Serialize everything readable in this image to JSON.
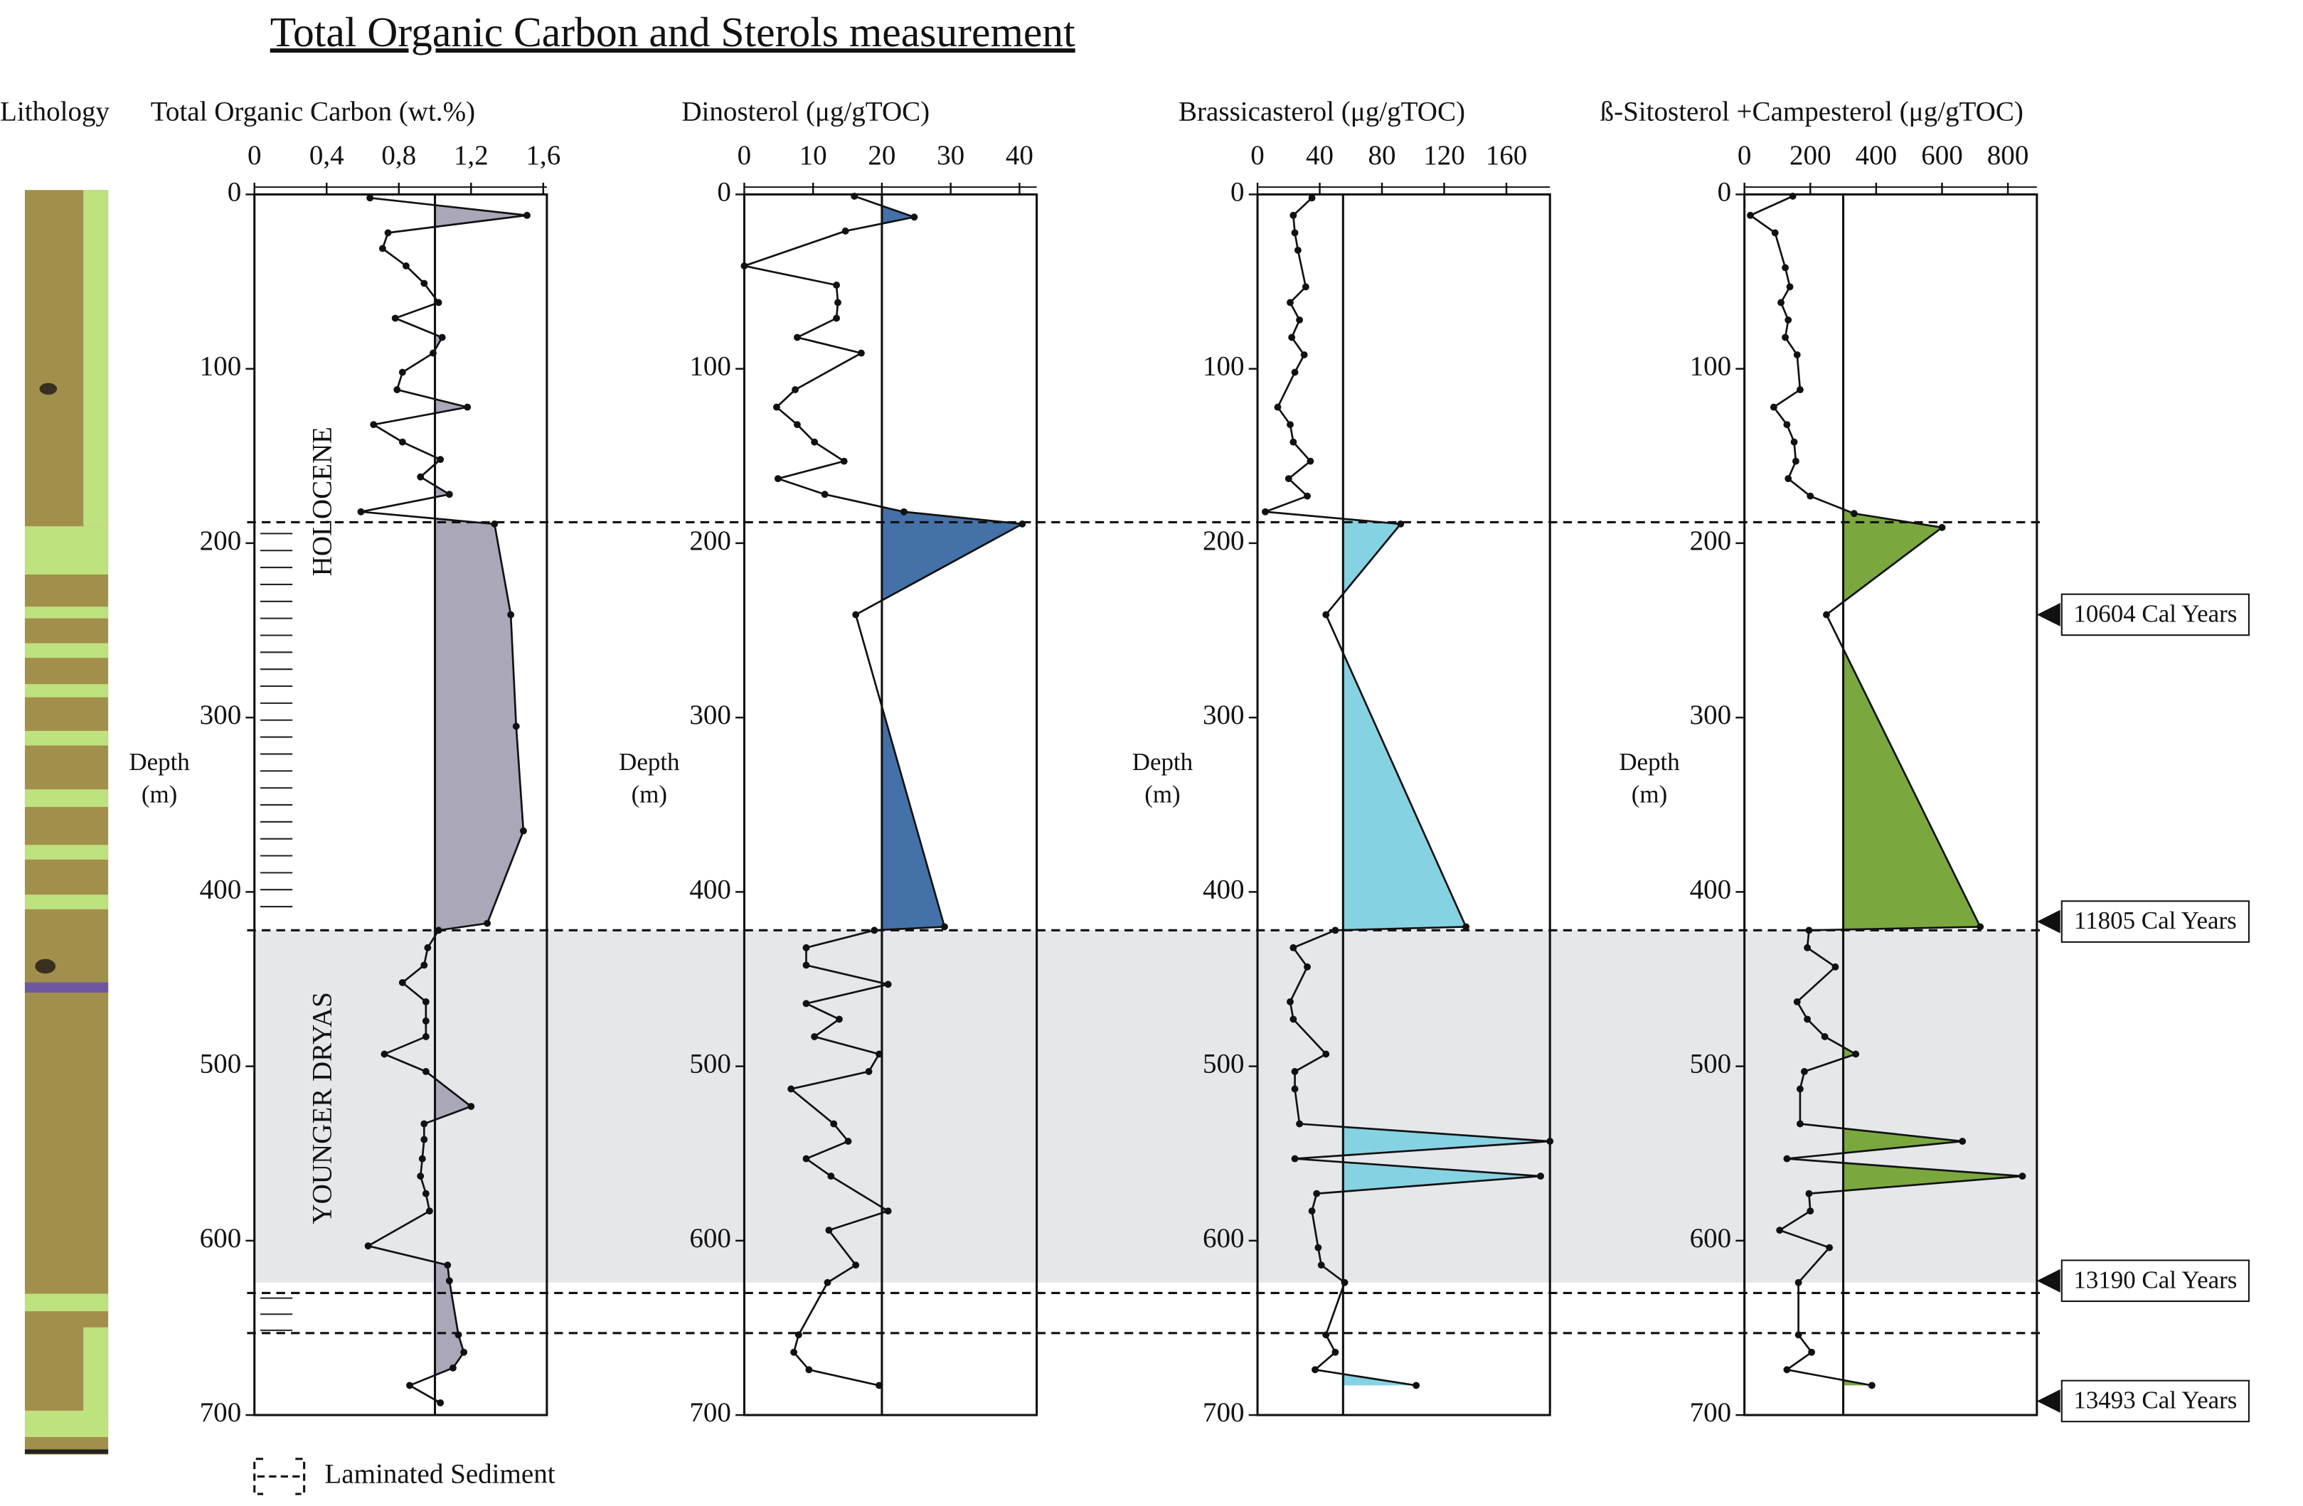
{
  "title": "Total Organic Carbon and Sterols measurement",
  "lithology_label": "Lithology",
  "legend_label": "Laminated Sediment",
  "zones": [
    "HOLOCENE",
    "YOUNGER DRYAS"
  ],
  "horizons": [
    188,
    422,
    630,
    653
  ],
  "shaded_zone": [
    422,
    624
  ],
  "ages": [
    {
      "label": "10604 Cal Years",
      "depth": 241
    },
    {
      "label": "11805 Cal Years",
      "depth": 417
    },
    {
      "label": "13190 Cal Years",
      "depth": 623
    },
    {
      "label": "13493 Cal Years",
      "depth": 692
    }
  ],
  "chart_data": [
    {
      "type": "line",
      "title": "Total Organic Carbon (wt.%)",
      "ylabel": [
        "Depth",
        "(m)"
      ],
      "xlim": [
        0,
        1.62
      ],
      "xticks": [
        0,
        {
          "value": 0.4,
          "label": "0,4"
        },
        {
          "value": 0.8,
          "label": "0,8"
        },
        {
          "value": 1.2,
          "label": "1,2"
        },
        {
          "value": 1.6,
          "label": "1,6"
        }
      ],
      "ylim": [
        0,
        700
      ],
      "yticks": [
        0,
        100,
        200,
        300,
        400,
        500,
        600,
        700
      ],
      "reference": 1.0,
      "color": "#111111",
      "fill_color": "#a9a7b8",
      "depth": [
        2,
        12,
        22,
        31,
        41,
        51,
        62,
        71,
        82,
        91,
        102,
        112,
        122,
        132,
        142,
        152,
        162,
        172,
        182,
        189,
        241,
        305,
        365,
        418,
        422,
        432,
        442,
        452,
        463,
        474,
        483,
        493,
        503,
        523,
        533,
        542,
        553,
        563,
        573,
        583,
        603,
        614,
        623,
        654,
        664,
        673,
        683,
        693
      ],
      "values": [
        0.64,
        1.51,
        0.74,
        0.71,
        0.84,
        0.94,
        1.02,
        0.78,
        1.04,
        0.99,
        0.82,
        0.79,
        1.18,
        0.66,
        0.82,
        1.03,
        0.92,
        1.08,
        0.59,
        1.33,
        1.42,
        1.45,
        1.49,
        1.29,
        1.02,
        0.96,
        0.94,
        0.82,
        0.95,
        0.95,
        0.95,
        0.72,
        0.95,
        1.2,
        0.94,
        0.94,
        0.93,
        0.92,
        0.95,
        0.97,
        0.63,
        1.07,
        1.08,
        1.13,
        1.16,
        1.1,
        0.86,
        1.03
      ]
    },
    {
      "type": "line",
      "title": "Dinosterol (μg/gTOC)",
      "ylabel": [
        "Depth",
        "(m)"
      ],
      "xlim": [
        0,
        42.5
      ],
      "xticks": [
        0,
        10,
        20,
        30,
        40
      ],
      "ylim": [
        0,
        700
      ],
      "yticks": [
        0,
        100,
        200,
        300,
        400,
        500,
        600,
        700
      ],
      "reference": 20,
      "color": "#111111",
      "fill_color": "#4472a8",
      "depth": [
        1,
        13,
        21,
        41,
        52,
        62,
        71,
        82,
        91,
        112,
        122,
        132,
        142,
        153,
        163,
        172,
        182,
        189,
        241,
        420,
        422,
        432,
        442,
        453,
        464,
        473,
        483,
        493,
        503,
        513,
        533,
        543,
        553,
        563,
        583,
        594,
        614,
        624,
        654,
        664,
        674,
        683
      ],
      "values": [
        16,
        24.7,
        14.7,
        0,
        13.4,
        13.6,
        13.4,
        7.7,
        17,
        7.4,
        4.7,
        7.7,
        10.2,
        14.5,
        4.9,
        11.7,
        23.2,
        40.4,
        16.2,
        29.1,
        18.9,
        9,
        9,
        20.9,
        9,
        13.8,
        10.2,
        19.6,
        18.1,
        6.8,
        13,
        15.1,
        9,
        12.6,
        20.9,
        12.3,
        16.2,
        12.1,
        7.9,
        7.2,
        9.4,
        19.6
      ]
    },
    {
      "type": "line",
      "title": "Brassicasterol (μg/gTOC)",
      "ylabel": [
        "Depth",
        "(m)"
      ],
      "xlim": [
        0,
        188
      ],
      "xticks": [
        0,
        40,
        80,
        120,
        160
      ],
      "ylim": [
        0,
        700
      ],
      "yticks": [
        0,
        100,
        200,
        300,
        400,
        500,
        600,
        700
      ],
      "reference": 55,
      "color": "#111111",
      "fill_color": "#85d3e2",
      "depth": [
        2,
        12,
        22,
        32,
        53,
        62,
        72,
        82,
        92,
        102,
        122,
        132,
        142,
        153,
        163,
        173,
        182,
        189,
        241,
        420,
        422,
        432,
        443,
        463,
        473,
        493,
        503,
        513,
        533,
        543,
        553,
        563,
        573,
        583,
        604,
        614,
        624,
        654,
        664,
        674,
        683
      ],
      "values": [
        35,
        23,
        24,
        26,
        31,
        21,
        27,
        22,
        30,
        24,
        13,
        21,
        23,
        34,
        20,
        32,
        5,
        92,
        44,
        134,
        50,
        23,
        32,
        21,
        23,
        44,
        24,
        24,
        27,
        188,
        24,
        182,
        38,
        35,
        39,
        41,
        56,
        44,
        50,
        37,
        102
      ]
    },
    {
      "type": "line",
      "title": "ß-Sitosterol +Campesterol (μg/gTOC)",
      "ylabel": [
        "Depth",
        "(m)"
      ],
      "xlim": [
        0,
        888
      ],
      "xticks": [
        0,
        200,
        400,
        600,
        800
      ],
      "ylim": [
        0,
        700
      ],
      "yticks": [
        0,
        100,
        200,
        300,
        400,
        500,
        600,
        700
      ],
      "reference": 300,
      "color": "#111111",
      "fill_color": "#7aa83e",
      "depth": [
        1,
        12,
        22,
        42,
        53,
        62,
        72,
        82,
        92,
        112,
        122,
        132,
        142,
        153,
        163,
        173,
        183,
        191,
        241,
        420,
        422,
        432,
        443,
        463,
        473,
        483,
        493,
        503,
        513,
        533,
        543,
        553,
        563,
        573,
        583,
        594,
        604,
        624,
        654,
        664,
        674,
        683
      ],
      "values": [
        147,
        18,
        93,
        124,
        138,
        111,
        133,
        124,
        160,
        169,
        89,
        129,
        151,
        156,
        133,
        200,
        333,
        600,
        249,
        716,
        196,
        191,
        276,
        160,
        191,
        244,
        338,
        182,
        169,
        169,
        662,
        129,
        844,
        196,
        200,
        107,
        258,
        164,
        164,
        204,
        129,
        387
      ]
    }
  ]
}
